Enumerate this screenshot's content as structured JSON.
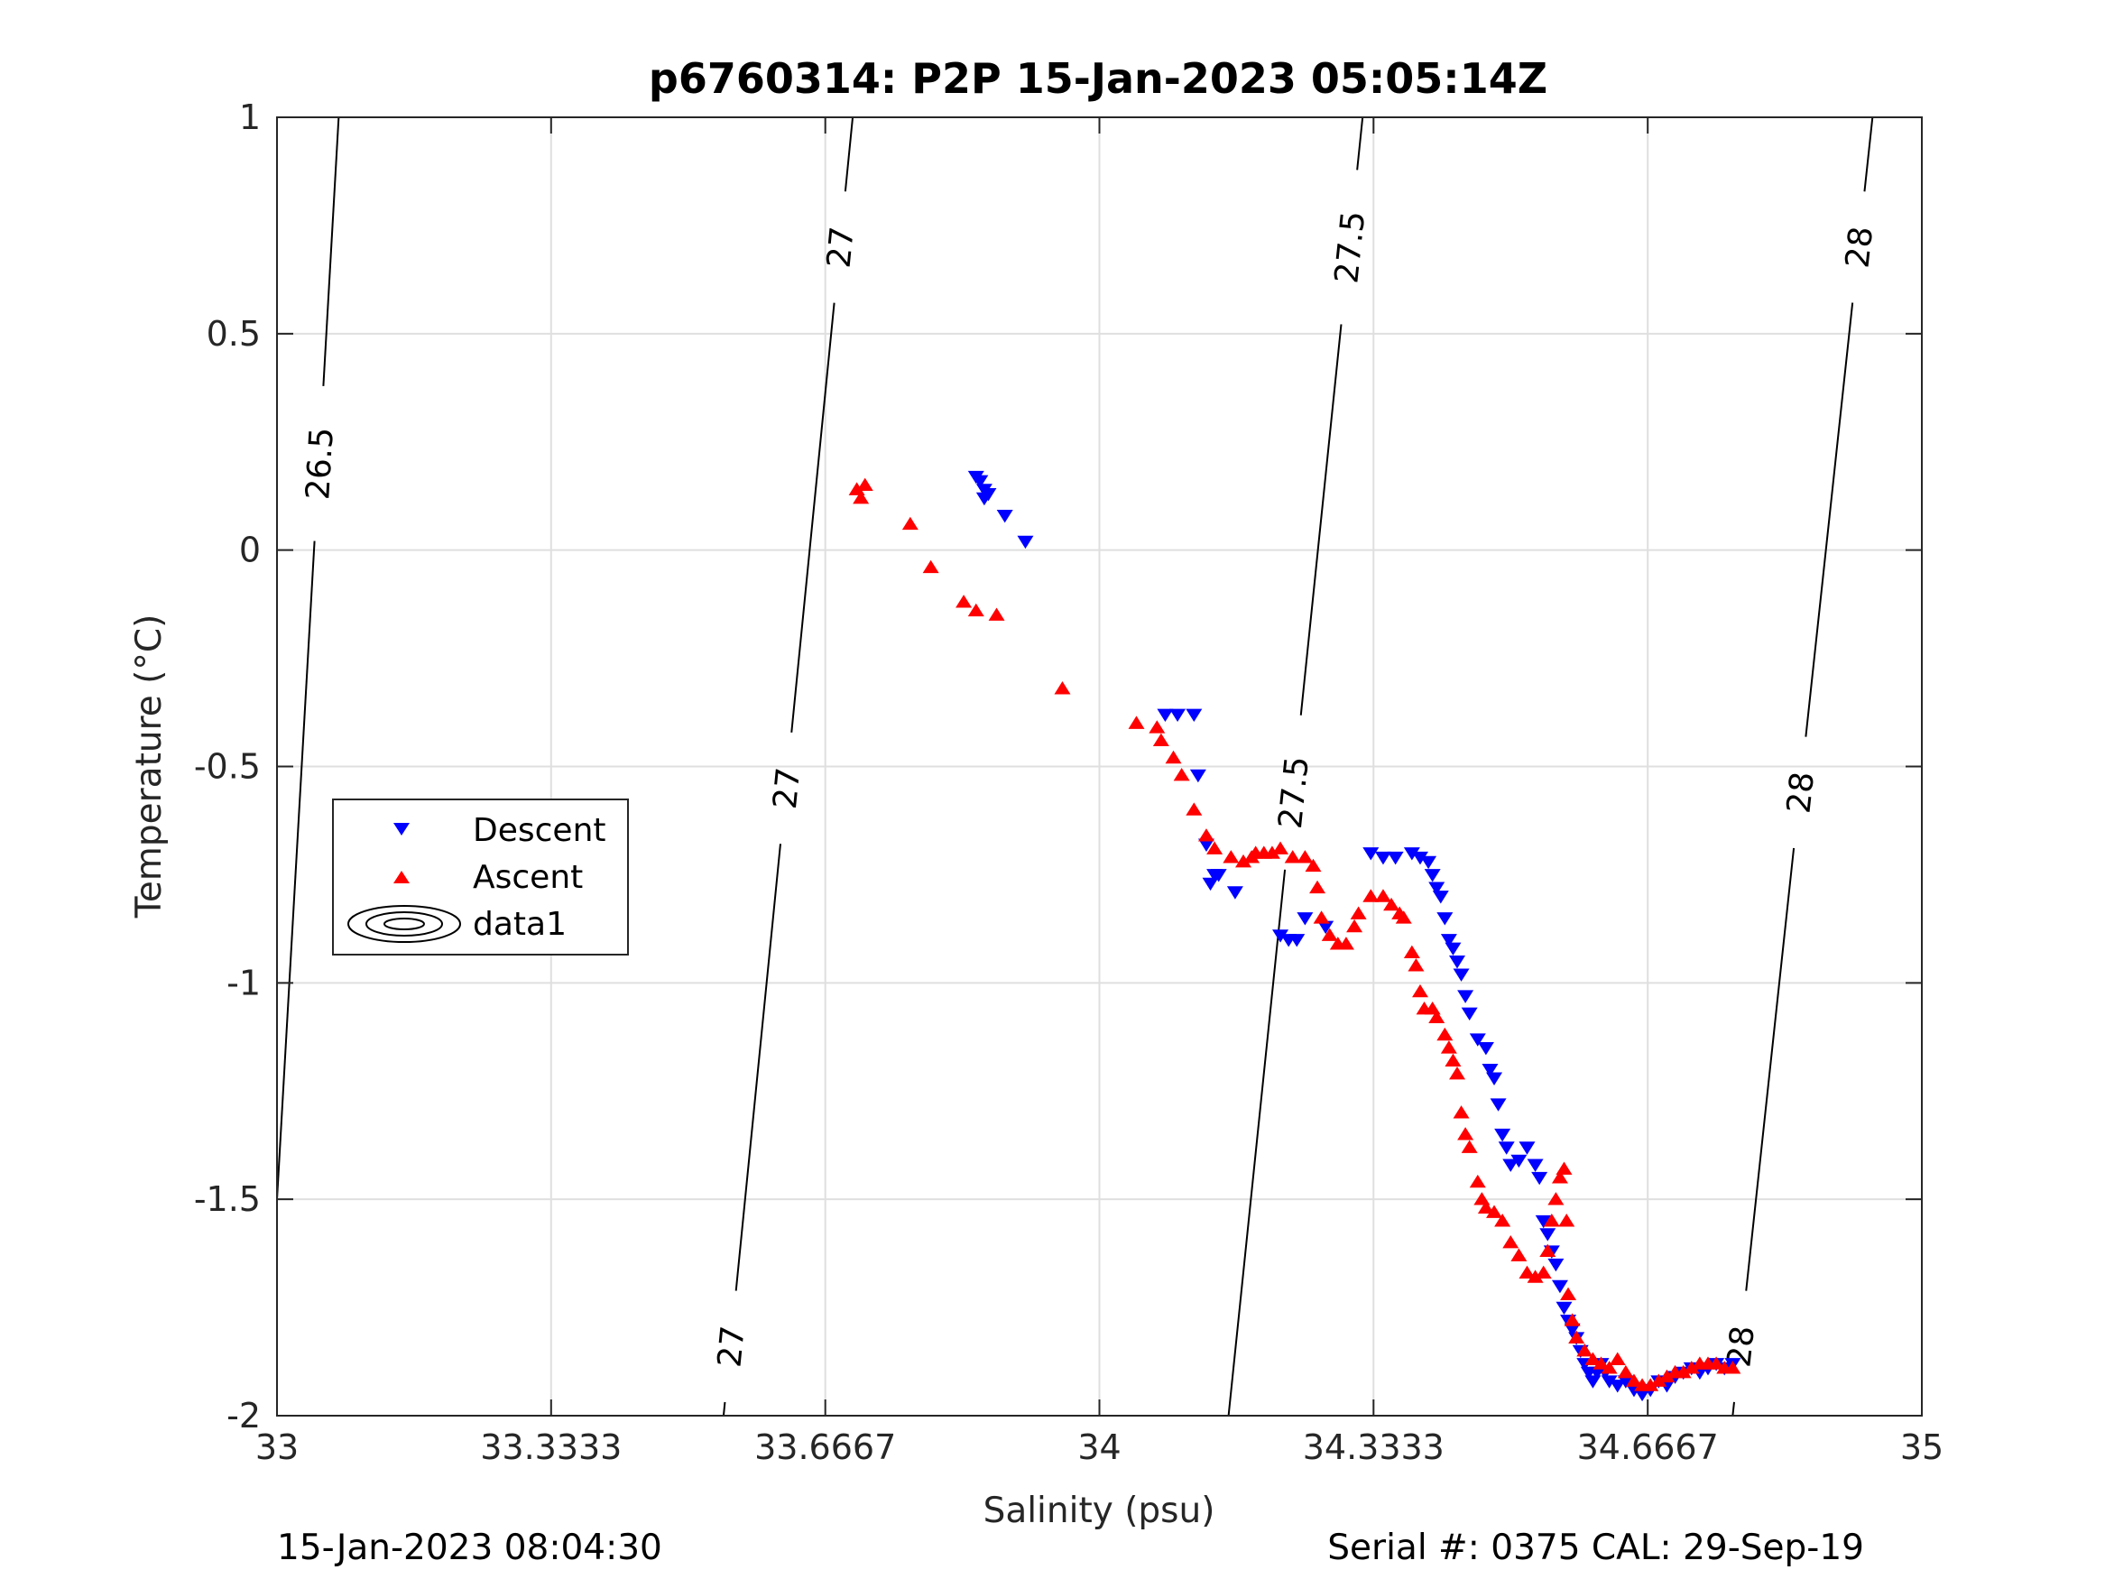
{
  "chart_data": {
    "type": "scatter",
    "title": "p6760314: P2P 15-Jan-2023 05:05:14Z",
    "xlabel": "Salinity (psu)",
    "ylabel": "Temperature (°C)",
    "xlim": [
      33,
      35
    ],
    "ylim": [
      -2,
      1
    ],
    "xticks": [
      33,
      33.3333,
      33.6667,
      34,
      34.3333,
      34.6667,
      35
    ],
    "xtick_labels": [
      "33",
      "33.3333",
      "33.6667",
      "34",
      "34.3333",
      "34.6667",
      "35"
    ],
    "yticks": [
      -2,
      -1.5,
      -1,
      -0.5,
      0,
      0.5,
      1
    ],
    "ytick_labels": [
      "-2",
      "-1.5",
      "-1",
      "-0.5",
      "0",
      "0.5",
      "1"
    ],
    "grid": true,
    "legend": {
      "placement": "left",
      "entries": [
        {
          "label": "Descent",
          "marker": "triangle-down",
          "color": "#0000ff"
        },
        {
          "label": "Ascent",
          "marker": "triangle-up",
          "color": "#ff0000"
        },
        {
          "label": "data1",
          "marker": "contour",
          "color": "#000000"
        }
      ]
    },
    "series": [
      {
        "name": "Descent",
        "marker": "triangle-down",
        "color": "#0000ff",
        "points": [
          [
            33.85,
            0.17
          ],
          [
            33.855,
            0.16
          ],
          [
            33.86,
            0.14
          ],
          [
            33.86,
            0.12
          ],
          [
            33.865,
            0.13
          ],
          [
            33.885,
            0.08
          ],
          [
            33.91,
            0.02
          ],
          [
            34.08,
            -0.38
          ],
          [
            34.095,
            -0.38
          ],
          [
            34.115,
            -0.38
          ],
          [
            34.12,
            -0.52
          ],
          [
            34.13,
            -0.68
          ],
          [
            34.135,
            -0.77
          ],
          [
            34.14,
            -0.75
          ],
          [
            34.145,
            -0.75
          ],
          [
            34.165,
            -0.79
          ],
          [
            34.22,
            -0.89
          ],
          [
            34.23,
            -0.9
          ],
          [
            34.24,
            -0.9
          ],
          [
            34.25,
            -0.85
          ],
          [
            34.275,
            -0.87
          ],
          [
            34.33,
            -0.7
          ],
          [
            34.345,
            -0.71
          ],
          [
            34.36,
            -0.71
          ],
          [
            34.38,
            -0.7
          ],
          [
            34.39,
            -0.71
          ],
          [
            34.4,
            -0.72
          ],
          [
            34.405,
            -0.75
          ],
          [
            34.41,
            -0.78
          ],
          [
            34.415,
            -0.8
          ],
          [
            34.42,
            -0.85
          ],
          [
            34.425,
            -0.9
          ],
          [
            34.43,
            -0.92
          ],
          [
            34.435,
            -0.95
          ],
          [
            34.44,
            -0.98
          ],
          [
            34.445,
            -1.03
          ],
          [
            34.45,
            -1.07
          ],
          [
            34.46,
            -1.13
          ],
          [
            34.47,
            -1.15
          ],
          [
            34.475,
            -1.2
          ],
          [
            34.48,
            -1.22
          ],
          [
            34.485,
            -1.28
          ],
          [
            34.49,
            -1.35
          ],
          [
            34.495,
            -1.38
          ],
          [
            34.5,
            -1.42
          ],
          [
            34.51,
            -1.41
          ],
          [
            34.52,
            -1.38
          ],
          [
            34.53,
            -1.42
          ],
          [
            34.535,
            -1.45
          ],
          [
            34.54,
            -1.55
          ],
          [
            34.545,
            -1.58
          ],
          [
            34.55,
            -1.62
          ],
          [
            34.555,
            -1.65
          ],
          [
            34.56,
            -1.7
          ],
          [
            34.565,
            -1.75
          ],
          [
            34.57,
            -1.78
          ],
          [
            34.575,
            -1.8
          ],
          [
            34.58,
            -1.82
          ],
          [
            34.585,
            -1.85
          ],
          [
            34.59,
            -1.88
          ],
          [
            34.595,
            -1.9
          ],
          [
            34.6,
            -1.92
          ],
          [
            34.605,
            -1.9
          ],
          [
            34.61,
            -1.88
          ],
          [
            34.615,
            -1.9
          ],
          [
            34.62,
            -1.92
          ],
          [
            34.63,
            -1.93
          ],
          [
            34.64,
            -1.92
          ],
          [
            34.65,
            -1.94
          ],
          [
            34.66,
            -1.95
          ],
          [
            34.67,
            -1.94
          ],
          [
            34.68,
            -1.92
          ],
          [
            34.69,
            -1.93
          ],
          [
            34.7,
            -1.91
          ],
          [
            34.71,
            -1.9
          ],
          [
            34.72,
            -1.89
          ],
          [
            34.73,
            -1.9
          ],
          [
            34.74,
            -1.89
          ],
          [
            34.75,
            -1.88
          ],
          [
            34.76,
            -1.89
          ],
          [
            34.77,
            -1.88
          ]
        ]
      },
      {
        "name": "Ascent",
        "marker": "triangle-up",
        "color": "#ff0000",
        "points": [
          [
            33.705,
            0.14
          ],
          [
            33.715,
            0.15
          ],
          [
            33.71,
            0.12
          ],
          [
            33.77,
            0.06
          ],
          [
            33.795,
            -0.04
          ],
          [
            33.835,
            -0.12
          ],
          [
            33.85,
            -0.14
          ],
          [
            33.875,
            -0.15
          ],
          [
            33.955,
            -0.32
          ],
          [
            34.045,
            -0.4
          ],
          [
            34.07,
            -0.41
          ],
          [
            34.075,
            -0.44
          ],
          [
            34.09,
            -0.48
          ],
          [
            34.1,
            -0.52
          ],
          [
            34.115,
            -0.6
          ],
          [
            34.13,
            -0.66
          ],
          [
            34.14,
            -0.69
          ],
          [
            34.16,
            -0.71
          ],
          [
            34.175,
            -0.72
          ],
          [
            34.185,
            -0.71
          ],
          [
            34.19,
            -0.7
          ],
          [
            34.2,
            -0.7
          ],
          [
            34.21,
            -0.7
          ],
          [
            34.22,
            -0.69
          ],
          [
            34.235,
            -0.71
          ],
          [
            34.25,
            -0.71
          ],
          [
            34.26,
            -0.73
          ],
          [
            34.265,
            -0.78
          ],
          [
            34.27,
            -0.85
          ],
          [
            34.28,
            -0.89
          ],
          [
            34.29,
            -0.91
          ],
          [
            34.3,
            -0.91
          ],
          [
            34.31,
            -0.87
          ],
          [
            34.315,
            -0.84
          ],
          [
            34.33,
            -0.8
          ],
          [
            34.345,
            -0.8
          ],
          [
            34.355,
            -0.82
          ],
          [
            34.365,
            -0.84
          ],
          [
            34.37,
            -0.85
          ],
          [
            34.38,
            -0.93
          ],
          [
            34.385,
            -0.96
          ],
          [
            34.39,
            -1.02
          ],
          [
            34.395,
            -1.06
          ],
          [
            34.405,
            -1.06
          ],
          [
            34.41,
            -1.08
          ],
          [
            34.42,
            -1.12
          ],
          [
            34.425,
            -1.15
          ],
          [
            34.43,
            -1.18
          ],
          [
            34.435,
            -1.21
          ],
          [
            34.44,
            -1.3
          ],
          [
            34.445,
            -1.35
          ],
          [
            34.45,
            -1.38
          ],
          [
            34.46,
            -1.46
          ],
          [
            34.465,
            -1.5
          ],
          [
            34.47,
            -1.52
          ],
          [
            34.48,
            -1.53
          ],
          [
            34.49,
            -1.55
          ],
          [
            34.5,
            -1.6
          ],
          [
            34.51,
            -1.63
          ],
          [
            34.52,
            -1.67
          ],
          [
            34.53,
            -1.68
          ],
          [
            34.54,
            -1.67
          ],
          [
            34.545,
            -1.62
          ],
          [
            34.55,
            -1.55
          ],
          [
            34.555,
            -1.5
          ],
          [
            34.56,
            -1.45
          ],
          [
            34.565,
            -1.43
          ],
          [
            34.568,
            -1.55
          ],
          [
            34.57,
            -1.72
          ],
          [
            34.575,
            -1.78
          ],
          [
            34.58,
            -1.82
          ],
          [
            34.59,
            -1.85
          ],
          [
            34.6,
            -1.87
          ],
          [
            34.61,
            -1.88
          ],
          [
            34.62,
            -1.89
          ],
          [
            34.63,
            -1.87
          ],
          [
            34.64,
            -1.9
          ],
          [
            34.65,
            -1.92
          ],
          [
            34.66,
            -1.93
          ],
          [
            34.67,
            -1.93
          ],
          [
            34.68,
            -1.92
          ],
          [
            34.69,
            -1.91
          ],
          [
            34.7,
            -1.9
          ],
          [
            34.71,
            -1.9
          ],
          [
            34.72,
            -1.89
          ],
          [
            34.73,
            -1.88
          ],
          [
            34.74,
            -1.88
          ],
          [
            34.75,
            -1.88
          ],
          [
            34.76,
            -1.89
          ],
          [
            34.77,
            -1.89
          ]
        ]
      }
    ],
    "contours": [
      {
        "label": "26.5",
        "s_at_top": 33.075,
        "s_at_bottom": 32.985,
        "labels_at_t": [
          0.2
        ]
      },
      {
        "label": "27",
        "s_at_top": 33.7,
        "s_at_bottom": 33.543,
        "labels_at_t": [
          0.7,
          -0.55,
          -1.84
        ]
      },
      {
        "label": "27.5",
        "s_at_top": 34.32,
        "s_at_bottom": 34.157,
        "labels_at_t": [
          0.7,
          -0.56
        ]
      },
      {
        "label": "28",
        "s_at_top": 34.94,
        "s_at_bottom": 34.77,
        "labels_at_t": [
          0.7,
          -0.56,
          -1.84
        ]
      }
    ]
  },
  "footer": {
    "timestamp": "15-Jan-2023 08:04:30",
    "serial": "Serial #: 0375  CAL: 29-Sep-19"
  }
}
